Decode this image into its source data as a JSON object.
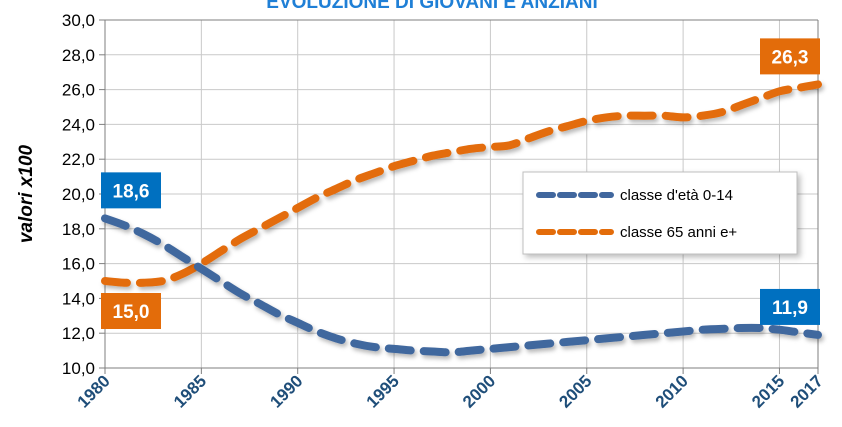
{
  "chart_data": {
    "type": "line",
    "title": "EVOLUZIONE DI GIOVANI E ANZIANI",
    "xlabel": "",
    "ylabel": "valori  x100",
    "xlim": [
      1980,
      2017
    ],
    "ylim": [
      10,
      30
    ],
    "y_ticks": [
      "10,0",
      "12,0",
      "14,0",
      "16,0",
      "18,0",
      "20,0",
      "22,0",
      "24,0",
      "26,0",
      "28,0",
      "30,0"
    ],
    "x_ticks": [
      "1980",
      "1985",
      "1990",
      "1995",
      "2000",
      "2005",
      "2010",
      "2015",
      "2017"
    ],
    "grid": true,
    "legend_placement": "right",
    "colors": {
      "title": "#1f7fd6",
      "grid": "#c9c9c9",
      "axis": "#7f7f7f",
      "x_tick_labels": "#1f4e79"
    },
    "series": [
      {
        "name": "classe d'età 0-14",
        "color": "#41679e",
        "x": [
          1980,
          1981,
          1982,
          1983,
          1984,
          1985,
          1986,
          1987,
          1988,
          1989,
          1990,
          1991,
          1992,
          1993,
          1994,
          1995,
          1996,
          1997,
          1998,
          1999,
          2000,
          2001,
          2002,
          2003,
          2004,
          2005,
          2006,
          2007,
          2008,
          2009,
          2010,
          2011,
          2012,
          2013,
          2014,
          2015,
          2016,
          2017
        ],
        "values": [
          18.6,
          18.2,
          17.7,
          17.1,
          16.4,
          15.7,
          15.0,
          14.3,
          13.7,
          13.1,
          12.6,
          12.1,
          11.7,
          11.4,
          11.2,
          11.1,
          11.0,
          10.95,
          10.9,
          11.0,
          11.1,
          11.2,
          11.3,
          11.4,
          11.5,
          11.6,
          11.7,
          11.8,
          11.9,
          12.0,
          12.1,
          12.2,
          12.25,
          12.3,
          12.3,
          12.2,
          12.05,
          11.9
        ]
      },
      {
        "name": "classe 65 anni e+",
        "color": "#e36c0a",
        "x": [
          1980,
          1981,
          1982,
          1983,
          1984,
          1985,
          1986,
          1987,
          1988,
          1989,
          1990,
          1991,
          1992,
          1993,
          1994,
          1995,
          1996,
          1997,
          1998,
          1999,
          2000,
          2001,
          2002,
          2003,
          2004,
          2005,
          2006,
          2007,
          2008,
          2009,
          2010,
          2011,
          2012,
          2013,
          2014,
          2015,
          2016,
          2017
        ],
        "values": [
          15.0,
          14.9,
          14.9,
          15.0,
          15.4,
          16.0,
          16.7,
          17.4,
          18.0,
          18.6,
          19.2,
          19.8,
          20.3,
          20.8,
          21.2,
          21.6,
          21.9,
          22.2,
          22.4,
          22.6,
          22.7,
          22.8,
          23.2,
          23.6,
          23.9,
          24.2,
          24.4,
          24.5,
          24.5,
          24.5,
          24.4,
          24.5,
          24.7,
          25.1,
          25.5,
          25.9,
          26.1,
          26.3
        ]
      }
    ],
    "annotations": [
      {
        "text": "18,6",
        "series": 0,
        "x": 1980,
        "y": 18.6,
        "color": "#0070c0"
      },
      {
        "text": "15,0",
        "series": 1,
        "x": 1980,
        "y": 15.0,
        "color": "#e36c0a"
      },
      {
        "text": "11,9",
        "series": 0,
        "x": 2017,
        "y": 11.9,
        "color": "#0070c0"
      },
      {
        "text": "26,3",
        "series": 1,
        "x": 2017,
        "y": 26.3,
        "color": "#e36c0a"
      }
    ]
  }
}
